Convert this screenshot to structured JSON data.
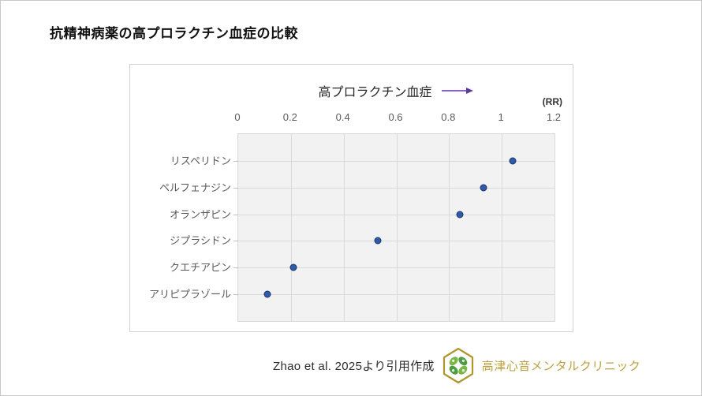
{
  "page": {
    "title": "抗精神病薬の高プロラクチン血症の比較"
  },
  "chart_data": {
    "type": "scatter",
    "orientation": "horizontal",
    "title": "高プロラクチン血症",
    "unit": "(RR)",
    "categories": [
      "リスペリドン",
      "ペルフェナジン",
      "オランザピン",
      "ジプラシドン",
      "クエチアピン",
      "アリピプラゾール"
    ],
    "values": [
      1.04,
      0.93,
      0.84,
      0.53,
      0.21,
      0.11
    ],
    "xlim": [
      0,
      1.2
    ],
    "xticks": [
      0,
      0.2,
      0.4,
      0.6,
      0.8,
      1,
      1.2
    ],
    "xtick_labels": [
      "0",
      "0.2",
      "0.4",
      "0.6",
      "0.8",
      "1",
      "1.2"
    ],
    "grid": true,
    "legend": "none",
    "marker_color": "#2e59ac",
    "marker_border_color": "#1b3766",
    "plot_bg_color": "#f2f2f2",
    "grid_color": "#d9d9d9",
    "arrow_color": "#7d55b5"
  },
  "footer": {
    "source_text": "Zhao et al. 2025より引用作成",
    "clinic_name": "高津心音メンタルクリニック"
  }
}
